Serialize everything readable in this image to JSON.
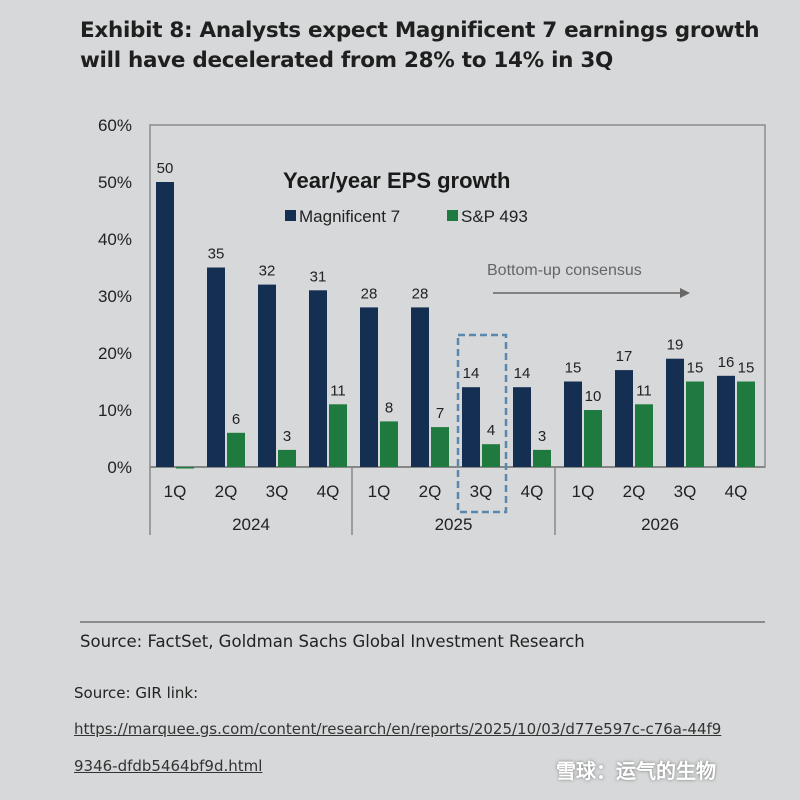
{
  "title_lines": [
    "Exhibit 8: Analysts expect Magnificent 7 earnings growth",
    "will have decelerated from 28% to 14% in 3Q"
  ],
  "chart_data": {
    "type": "bar",
    "title": "Year/year EPS growth",
    "categories": [
      "1Q",
      "2Q",
      "3Q",
      "4Q",
      "1Q",
      "2Q",
      "3Q",
      "4Q",
      "1Q",
      "2Q",
      "3Q",
      "4Q"
    ],
    "years": [
      "2024",
      "2025",
      "2026"
    ],
    "series": [
      {
        "name": "Magnificent 7",
        "color": "#142f52",
        "values": [
          50,
          35,
          32,
          31,
          28,
          28,
          14,
          14,
          15,
          17,
          19,
          16
        ]
      },
      {
        "name": "S&P 493",
        "color": "#1e7a3e",
        "values": [
          0,
          6,
          3,
          11,
          8,
          7,
          4,
          3,
          10,
          11,
          15,
          15
        ]
      }
    ],
    "labels_shown": [
      [
        true,
        true,
        true,
        true,
        true,
        true,
        true,
        true,
        true,
        true,
        true,
        true
      ],
      [
        false,
        true,
        true,
        true,
        true,
        true,
        true,
        true,
        true,
        true,
        true,
        true
      ]
    ],
    "yticks": [
      "0%",
      "10%",
      "20%",
      "30%",
      "40%",
      "50%",
      "60%"
    ],
    "ylim": [
      0,
      60
    ],
    "highlight_index": 6,
    "annotation": "Bottom-up consensus",
    "legend": "top-center"
  },
  "source": "Source: FactSet, Goldman Sachs Global Investment Research",
  "gir_label": "Source: GIR link:",
  "link_line1": "https://marquee.gs.com/content/research/en/reports/2025/10/03/d77e597c-c76a-44f9",
  "link_line2": "9346-dfdb5464bf9d.html",
  "watermark": "雪球：运气的生物"
}
